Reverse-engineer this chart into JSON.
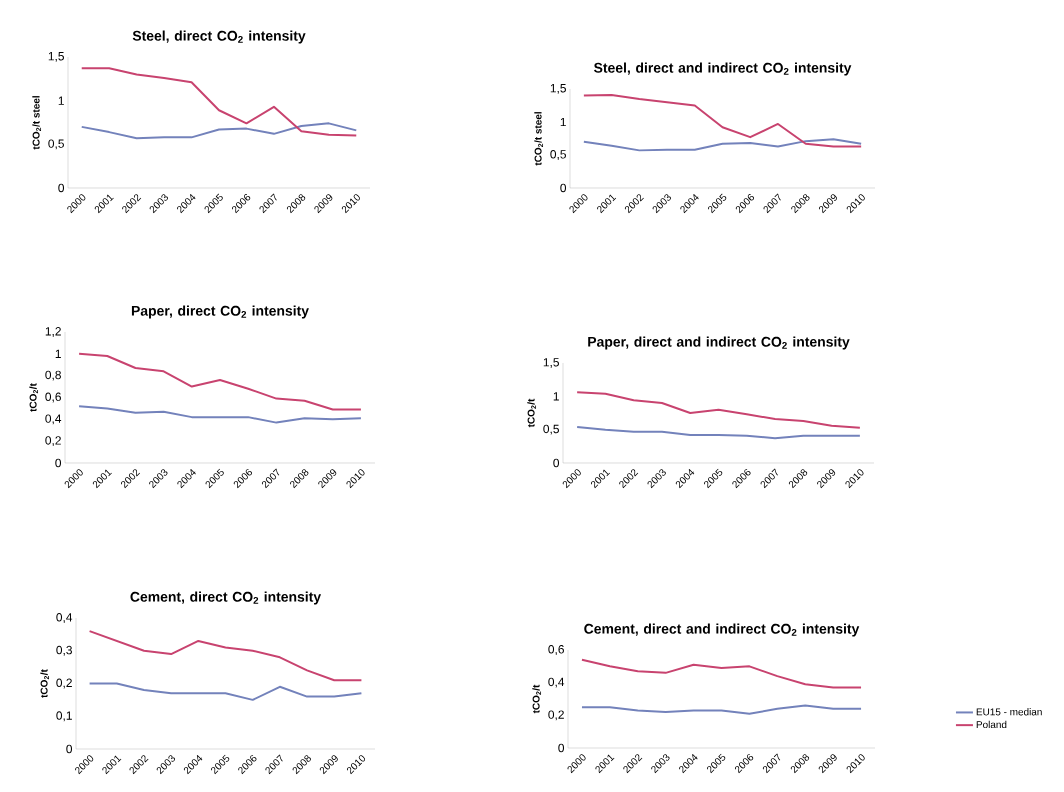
{
  "chart_data": [
    {
      "type": "line",
      "title": "Steel, direct CO$_{2}$ intensity",
      "ylabel": "tCO$_{2}$/t steel",
      "categories": [
        "2000",
        "2001",
        "2002",
        "2003",
        "2004",
        "2005",
        "2006",
        "2007",
        "2008",
        "2009",
        "2010"
      ],
      "ylim": [
        0,
        1.5
      ],
      "yticks": [
        0,
        {
          "value": 0.5,
          "label": "0,5"
        },
        1,
        {
          "value": 1.5,
          "label": "1,5"
        }
      ],
      "legend": false,
      "series": [
        {
          "color": "#7382bb",
          "values": [
            0.7,
            0.64,
            0.57,
            0.58,
            0.58,
            0.67,
            0.68,
            0.62,
            0.71,
            0.74,
            0.66
          ]
        },
        {
          "color": "#c8436f",
          "values": [
            1.37,
            1.37,
            1.3,
            1.26,
            1.21,
            0.89,
            0.74,
            0.93,
            0.65,
            0.61,
            0.6
          ]
        }
      ]
    },
    {
      "type": "line",
      "title": "Steel, direct and indirect CO$_{2}$ intensity",
      "ylabel": "tCO$_{2}$/t steel",
      "categories": [
        "2000",
        "2001",
        "2002",
        "2003",
        "2004",
        "2005",
        "2006",
        "2007",
        "2008",
        "2009",
        "2010"
      ],
      "ylim": [
        0,
        1.5
      ],
      "yticks": [
        0,
        {
          "value": 0.5,
          "label": "0,5"
        },
        1,
        {
          "value": 1.5,
          "label": "1,5"
        }
      ],
      "legend": false,
      "series": [
        {
          "color": "#7382bb",
          "values": [
            0.7,
            0.64,
            0.57,
            0.58,
            0.58,
            0.67,
            0.68,
            0.63,
            0.71,
            0.74,
            0.67
          ]
        },
        {
          "color": "#c8436f",
          "values": [
            1.4,
            1.41,
            1.35,
            1.3,
            1.25,
            0.92,
            0.77,
            0.97,
            0.67,
            0.63,
            0.63
          ]
        }
      ]
    },
    {
      "type": "line",
      "title": "Paper, direct CO$_{2}$ intensity",
      "ylabel": "tCO$_{2}$/t",
      "categories": [
        "2000",
        "2001",
        "2002",
        "2003",
        "2004",
        "2005",
        "2006",
        "2007",
        "2008",
        "2009",
        "2010"
      ],
      "ylim": [
        0,
        1.2
      ],
      "yticks": [
        0,
        {
          "value": 0.2,
          "label": "0,2"
        },
        {
          "value": 0.4,
          "label": "0,4"
        },
        {
          "value": 0.6,
          "label": "0,6"
        },
        {
          "value": 0.8,
          "label": "0,8"
        },
        1,
        {
          "value": 1.2,
          "label": "1,2"
        }
      ],
      "legend": false,
      "series": [
        {
          "color": "#7382bb",
          "values": [
            0.52,
            0.5,
            0.46,
            0.47,
            0.42,
            0.42,
            0.42,
            0.37,
            0.41,
            0.4,
            0.41
          ]
        },
        {
          "color": "#c8436f",
          "values": [
            1.0,
            0.98,
            0.87,
            0.84,
            0.7,
            0.76,
            0.68,
            0.59,
            0.57,
            0.49,
            0.49
          ]
        }
      ]
    },
    {
      "type": "line",
      "title": "Paper, direct and indirect CO$_{2}$ intensity",
      "ylabel": "tCO$_{2}$/t",
      "categories": [
        "2000",
        "2001",
        "2002",
        "2003",
        "2004",
        "2005",
        "2006",
        "2007",
        "2008",
        "2009",
        "2010"
      ],
      "ylim": [
        0,
        1.5
      ],
      "yticks": [
        0,
        {
          "value": 0.5,
          "label": "0,5"
        },
        1,
        {
          "value": 1.5,
          "label": "1,5"
        }
      ],
      "legend": false,
      "series": [
        {
          "color": "#7382bb",
          "values": [
            0.54,
            0.5,
            0.47,
            0.47,
            0.42,
            0.42,
            0.41,
            0.37,
            0.41,
            0.41,
            0.41
          ]
        },
        {
          "color": "#c8436f",
          "values": [
            1.06,
            1.04,
            0.94,
            0.9,
            0.75,
            0.8,
            0.73,
            0.66,
            0.63,
            0.56,
            0.53
          ]
        }
      ]
    },
    {
      "type": "line",
      "title": "Cement, direct CO$_{2}$ intensity",
      "ylabel": "tCO$_{2}$/t",
      "categories": [
        "2000",
        "2001",
        "2002",
        "2003",
        "2004",
        "2005",
        "2006",
        "2007",
        "2008",
        "2009",
        "2010"
      ],
      "ylim": [
        0,
        0.4
      ],
      "yticks": [
        0,
        {
          "value": 0.1,
          "label": "0,1"
        },
        {
          "value": 0.2,
          "label": "0,2"
        },
        {
          "value": 0.3,
          "label": "0,3"
        },
        {
          "value": 0.4,
          "label": "0,4"
        }
      ],
      "legend": false,
      "series": [
        {
          "color": "#7382bb",
          "values": [
            0.2,
            0.2,
            0.18,
            0.17,
            0.17,
            0.17,
            0.15,
            0.19,
            0.16,
            0.16,
            0.17
          ]
        },
        {
          "color": "#c8436f",
          "values": [
            0.36,
            0.33,
            0.3,
            0.29,
            0.33,
            0.31,
            0.3,
            0.28,
            0.24,
            0.21,
            0.21
          ]
        }
      ]
    },
    {
      "type": "line",
      "title": "Cement, direct and indirect CO$_{2}$ intensity",
      "ylabel": "tCO$_{2}$/t",
      "categories": [
        "2000",
        "2001",
        "2002",
        "2003",
        "2004",
        "2005",
        "2006",
        "2007",
        "2008",
        "2009",
        "2010"
      ],
      "ylim": [
        0,
        0.6
      ],
      "yticks": [
        0,
        {
          "value": 0.2,
          "label": "0,2"
        },
        {
          "value": 0.4,
          "label": "0,4"
        },
        {
          "value": 0.6,
          "label": "0,6"
        }
      ],
      "legend": "right",
      "series": [
        {
          "name": "EU15 - median",
          "color": "#7382bb",
          "values": [
            0.25,
            0.25,
            0.23,
            0.22,
            0.23,
            0.23,
            0.21,
            0.24,
            0.26,
            0.24,
            0.24
          ]
        },
        {
          "name": "Poland",
          "color": "#c8436f",
          "values": [
            0.54,
            0.5,
            0.47,
            0.46,
            0.51,
            0.49,
            0.5,
            0.44,
            0.39,
            0.37,
            0.37
          ]
        }
      ]
    }
  ]
}
